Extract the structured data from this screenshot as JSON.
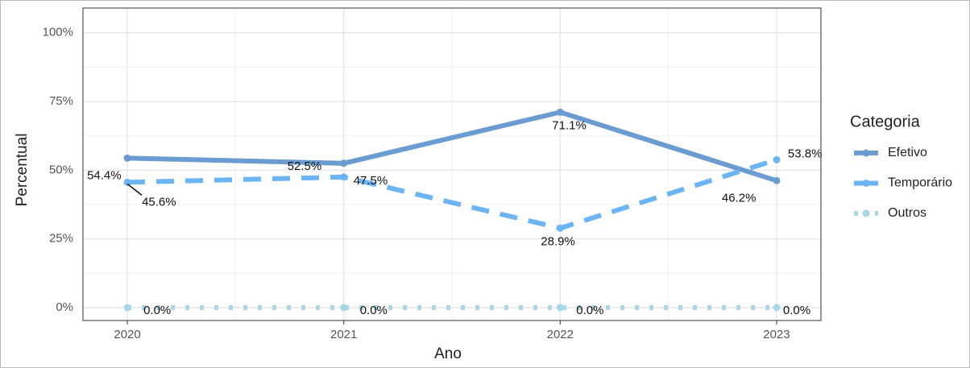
{
  "chart_data": {
    "type": "line",
    "x_label": "Ano",
    "y_label": "Percentual",
    "x": [
      2020,
      2021,
      2022,
      2023
    ],
    "series": [
      {
        "name": "Efetivo",
        "color": "#6a9bd1",
        "style": "solid",
        "values": [
          54.4,
          52.5,
          71.1,
          46.2
        ],
        "value_labels": [
          "54.4%",
          "52.5%",
          "71.1%",
          "46.2%"
        ]
      },
      {
        "name": "Temporário",
        "color": "#6bb5f5",
        "style": "dashed",
        "values": [
          45.6,
          47.5,
          28.9,
          53.8
        ],
        "value_labels": [
          "45.6%",
          "47.5%",
          "28.9%",
          "53.8%"
        ]
      },
      {
        "name": "Outros",
        "color": "#a8d8e8",
        "style": "dotted",
        "values": [
          0,
          0,
          0,
          0
        ],
        "value_labels": [
          "0.0%",
          "0.0%",
          "0.0%",
          "0.0%"
        ]
      }
    ],
    "legend_title": "Categoria",
    "legend": "right",
    "xlim": [
      2019.795,
      2023.205
    ],
    "xticks": [
      2020,
      2021,
      2022,
      2023
    ],
    "ylim": [
      -4.7,
      109
    ],
    "yticks": [
      {
        "value": 0,
        "label": "0%"
      },
      {
        "value": 25,
        "label": "25%"
      },
      {
        "value": 50,
        "label": "50%"
      },
      {
        "value": 75,
        "label": "75%"
      },
      {
        "value": 100,
        "label": "100%"
      }
    ],
    "grid": true
  }
}
